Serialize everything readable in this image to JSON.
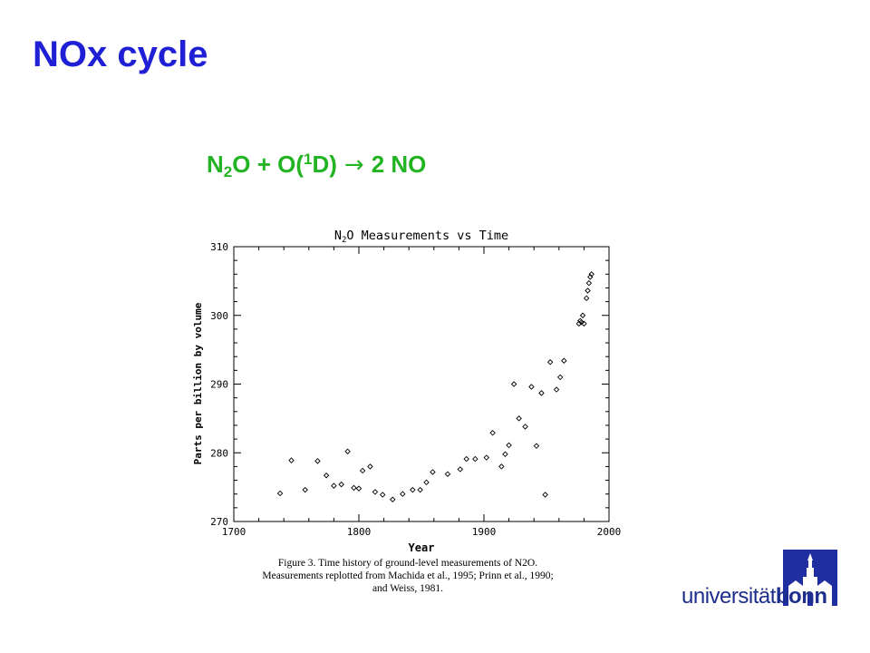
{
  "slide": {
    "title": "NOx cycle",
    "reaction": {
      "n": "N",
      "n_sub": "2",
      "o_plus": "O + O(",
      "sup": "1",
      "d_close": "D)",
      "arrow": "→",
      "product": "2 NO"
    }
  },
  "caption": {
    "lines": [
      "Figure 3. Time history of ground-level measurements of N2O.",
      "Measurements replotted from Machida et al., 1995; Prinn et al., 1990;",
      "and Weiss, 1981."
    ]
  },
  "logo": {
    "text_regular": "universität",
    "text_bold": "bonn"
  },
  "colors": {
    "title": "#1f1fd6",
    "reaction": "#22b422",
    "logo": "#1e2e8c"
  },
  "chart_data": {
    "type": "scatter",
    "title_prefix": "N",
    "title_sub": "2",
    "title_suffix": "O Measurements vs Time",
    "xlabel": "Year",
    "ylabel": "Parts per billion by volume",
    "xlim": [
      1700,
      2000
    ],
    "ylim": [
      270,
      310
    ],
    "xticks": [
      1700,
      1800,
      1900,
      2000
    ],
    "yticks": [
      270,
      280,
      290,
      300,
      310
    ],
    "marker": "diamond",
    "grid": false,
    "points": [
      [
        1737,
        274.1
      ],
      [
        1746,
        278.9
      ],
      [
        1757,
        274.6
      ],
      [
        1767,
        278.8
      ],
      [
        1774,
        276.7
      ],
      [
        1780,
        275.2
      ],
      [
        1786,
        275.4
      ],
      [
        1791,
        280.2
      ],
      [
        1796,
        274.9
      ],
      [
        1800,
        274.8
      ],
      [
        1803,
        277.4
      ],
      [
        1809,
        278.0
      ],
      [
        1813,
        274.3
      ],
      [
        1819,
        273.9
      ],
      [
        1827,
        273.2
      ],
      [
        1835,
        274.0
      ],
      [
        1843,
        274.6
      ],
      [
        1849,
        274.6
      ],
      [
        1854,
        275.7
      ],
      [
        1859,
        277.2
      ],
      [
        1871,
        276.9
      ],
      [
        1881,
        277.6
      ],
      [
        1886,
        279.1
      ],
      [
        1893,
        279.1
      ],
      [
        1902,
        279.3
      ],
      [
        1907,
        282.9
      ],
      [
        1914,
        278.0
      ],
      [
        1917,
        279.8
      ],
      [
        1920,
        281.1
      ],
      [
        1924,
        290.0
      ],
      [
        1928,
        285.0
      ],
      [
        1933,
        283.8
      ],
      [
        1938,
        289.6
      ],
      [
        1942,
        281.0
      ],
      [
        1946,
        288.7
      ],
      [
        1949,
        273.9
      ],
      [
        1953,
        293.2
      ],
      [
        1958,
        289.2
      ],
      [
        1961,
        291.0
      ],
      [
        1964,
        293.4
      ],
      [
        1976,
        298.8
      ],
      [
        1977,
        299.2
      ],
      [
        1978,
        299.0
      ],
      [
        1979,
        300.0
      ],
      [
        1980,
        298.8
      ],
      [
        1982,
        302.5
      ],
      [
        1983,
        303.6
      ],
      [
        1984,
        304.7
      ],
      [
        1985,
        305.6
      ],
      [
        1986,
        306.0
      ]
    ]
  }
}
